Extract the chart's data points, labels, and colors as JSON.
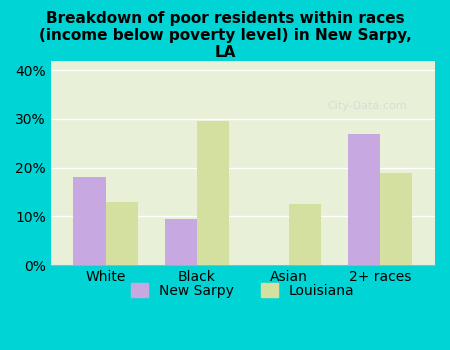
{
  "title": "Breakdown of poor residents within races\n(income below poverty level) in New Sarpy,\nLA",
  "categories": [
    "White",
    "Black",
    "Asian",
    "2+ races"
  ],
  "new_sarpy_values": [
    18,
    9.5,
    0,
    27
  ],
  "louisiana_values": [
    13,
    29.5,
    12.5,
    19
  ],
  "new_sarpy_color": "#c8a8e0",
  "louisiana_color": "#d4e0a0",
  "background_outer": "#00d4d4",
  "background_inner": "#e8f0d8",
  "ylim": [
    0,
    42
  ],
  "yticks": [
    0,
    10,
    20,
    30,
    40
  ],
  "ytick_labels": [
    "0%",
    "10%",
    "20%",
    "30%",
    "40%"
  ],
  "bar_width": 0.35,
  "legend_labels": [
    "New Sarpy",
    "Louisiana"
  ],
  "watermark": "City-Data.com"
}
